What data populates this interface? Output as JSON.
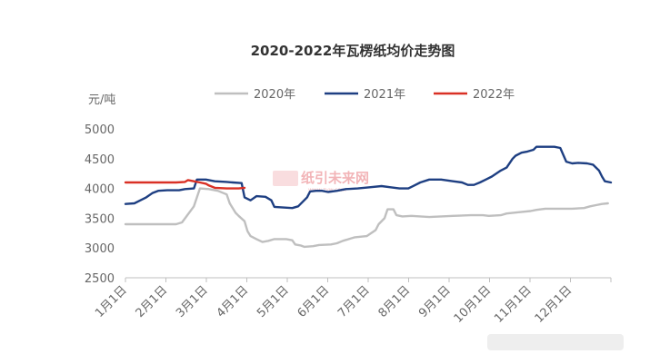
{
  "chart_data": {
    "type": "line",
    "title": "2020-2022年瓦楞纸均价走势图",
    "ylabel": "元/吨",
    "ylim": [
      2500,
      5000
    ],
    "yticks": [
      2500,
      3000,
      3500,
      4000,
      4500,
      5000
    ],
    "categories": [
      "1月1日",
      "2月1日",
      "3月1日",
      "4月1日",
      "5月1日",
      "6月1日",
      "7月1日",
      "8月1日",
      "9月1日",
      "10月1日",
      "11月1日",
      "12月1日"
    ],
    "grid": false,
    "legend_position": "top",
    "series": [
      {
        "name": "2020年",
        "color": "#bfbfbf",
        "points": [
          [
            0,
            3400
          ],
          [
            17,
            3400
          ],
          [
            19,
            3430
          ],
          [
            23,
            3700
          ],
          [
            25,
            4000
          ],
          [
            28,
            3990
          ],
          [
            31,
            3960
          ],
          [
            34,
            3900
          ],
          [
            35,
            3750
          ],
          [
            37,
            3590
          ],
          [
            38,
            3540
          ],
          [
            40,
            3450
          ],
          [
            41,
            3280
          ],
          [
            42,
            3200
          ],
          [
            44,
            3150
          ],
          [
            46,
            3100
          ],
          [
            48,
            3120
          ],
          [
            50,
            3150
          ],
          [
            54,
            3150
          ],
          [
            56,
            3130
          ],
          [
            57,
            3060
          ],
          [
            59,
            3040
          ],
          [
            60,
            3020
          ],
          [
            63,
            3030
          ],
          [
            65,
            3050
          ],
          [
            69,
            3060
          ],
          [
            71,
            3080
          ],
          [
            73,
            3120
          ],
          [
            75,
            3150
          ],
          [
            77,
            3180
          ],
          [
            81,
            3200
          ],
          [
            84,
            3300
          ],
          [
            85,
            3400
          ],
          [
            87,
            3500
          ],
          [
            88,
            3650
          ],
          [
            90,
            3650
          ],
          [
            91,
            3550
          ],
          [
            93,
            3530
          ],
          [
            96,
            3540
          ],
          [
            99,
            3530
          ],
          [
            102,
            3520
          ],
          [
            106,
            3530
          ],
          [
            110,
            3540
          ],
          [
            116,
            3550
          ],
          [
            120,
            3550
          ],
          [
            122,
            3540
          ],
          [
            126,
            3550
          ],
          [
            128,
            3580
          ],
          [
            132,
            3600
          ],
          [
            136,
            3620
          ],
          [
            138,
            3640
          ],
          [
            141,
            3660
          ],
          [
            146,
            3660
          ],
          [
            150,
            3660
          ],
          [
            154,
            3670
          ],
          [
            156,
            3700
          ],
          [
            158,
            3720
          ],
          [
            160,
            3740
          ],
          [
            162,
            3750
          ]
        ]
      },
      {
        "name": "2021年",
        "color": "#1e3f82",
        "points": [
          [
            0,
            3740
          ],
          [
            3,
            3750
          ],
          [
            5,
            3800
          ],
          [
            7,
            3850
          ],
          [
            9,
            3920
          ],
          [
            11,
            3960
          ],
          [
            14,
            3970
          ],
          [
            18,
            3970
          ],
          [
            20,
            3990
          ],
          [
            23,
            4000
          ],
          [
            24,
            4150
          ],
          [
            27,
            4150
          ],
          [
            30,
            4120
          ],
          [
            34,
            4110
          ],
          [
            36,
            4100
          ],
          [
            39,
            4090
          ],
          [
            40,
            3850
          ],
          [
            42,
            3800
          ],
          [
            44,
            3870
          ],
          [
            47,
            3860
          ],
          [
            49,
            3800
          ],
          [
            50,
            3690
          ],
          [
            53,
            3680
          ],
          [
            56,
            3670
          ],
          [
            58,
            3700
          ],
          [
            60,
            3800
          ],
          [
            61,
            3850
          ],
          [
            62,
            3950
          ],
          [
            64,
            3960
          ],
          [
            66,
            3960
          ],
          [
            68,
            3940
          ],
          [
            71,
            3960
          ],
          [
            74,
            3990
          ],
          [
            78,
            4000
          ],
          [
            82,
            4020
          ],
          [
            86,
            4040
          ],
          [
            89,
            4020
          ],
          [
            92,
            4000
          ],
          [
            95,
            4000
          ],
          [
            97,
            4050
          ],
          [
            99,
            4100
          ],
          [
            102,
            4150
          ],
          [
            106,
            4150
          ],
          [
            110,
            4120
          ],
          [
            113,
            4100
          ],
          [
            115,
            4060
          ],
          [
            117,
            4060
          ],
          [
            119,
            4100
          ],
          [
            121,
            4150
          ],
          [
            123,
            4200
          ],
          [
            126,
            4300
          ],
          [
            128,
            4350
          ],
          [
            130,
            4500
          ],
          [
            131,
            4550
          ],
          [
            133,
            4600
          ],
          [
            135,
            4620
          ],
          [
            137,
            4650
          ],
          [
            138,
            4700
          ],
          [
            141,
            4700
          ],
          [
            144,
            4700
          ],
          [
            146,
            4680
          ],
          [
            148,
            4450
          ],
          [
            150,
            4420
          ],
          [
            152,
            4430
          ],
          [
            155,
            4420
          ],
          [
            157,
            4400
          ],
          [
            159,
            4300
          ],
          [
            160,
            4200
          ],
          [
            161,
            4120
          ],
          [
            163,
            4100
          ]
        ]
      },
      {
        "name": "2022年",
        "color": "#d93025",
        "points": [
          [
            0,
            4100
          ],
          [
            4,
            4100
          ],
          [
            10,
            4100
          ],
          [
            17,
            4100
          ],
          [
            20,
            4110
          ],
          [
            21,
            4140
          ],
          [
            23,
            4120
          ],
          [
            25,
            4100
          ],
          [
            27,
            4080
          ],
          [
            28,
            4050
          ],
          [
            30,
            4010
          ],
          [
            34,
            4000
          ],
          [
            38,
            4000
          ],
          [
            40,
            4010
          ]
        ]
      }
    ],
    "annotations": [
      "元/吨"
    ],
    "watermark": "纸引未来网"
  }
}
